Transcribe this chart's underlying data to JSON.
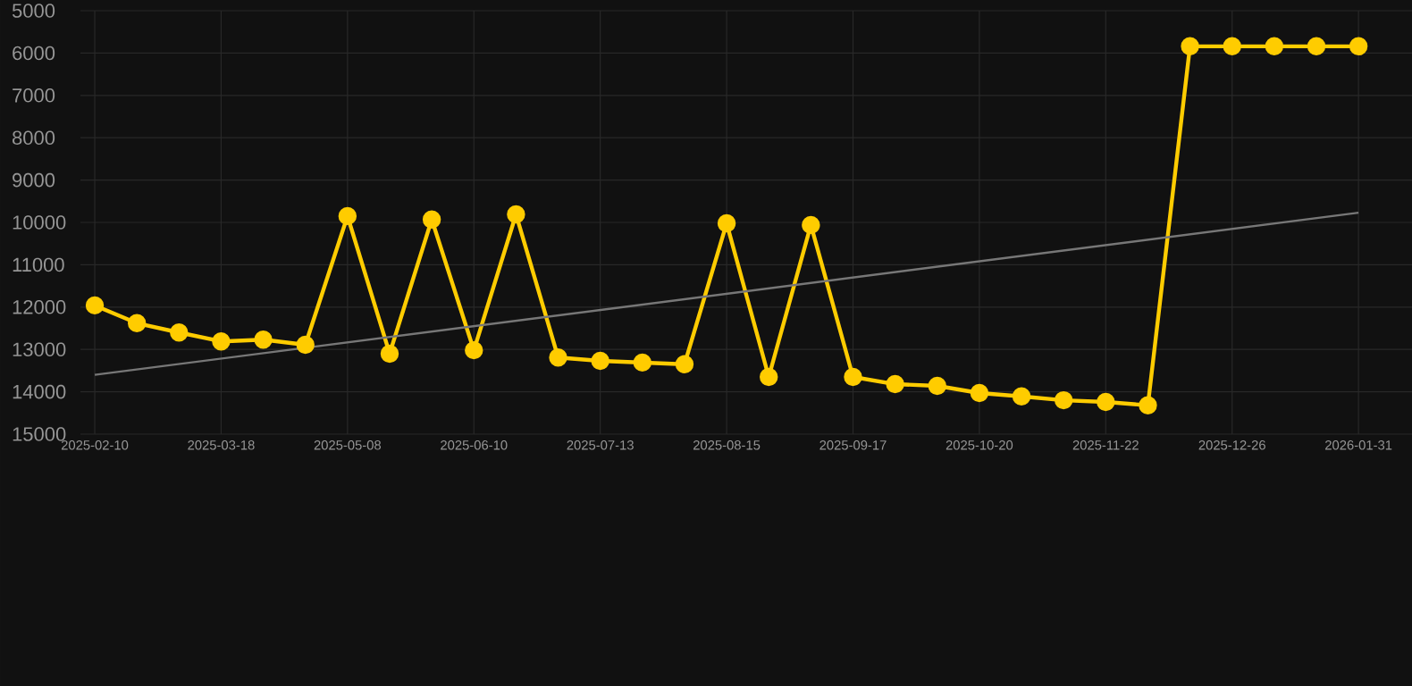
{
  "chart_data": {
    "type": "line",
    "categories": [
      "2025-02-10",
      null,
      null,
      "2025-03-18",
      null,
      null,
      "2025-05-08",
      null,
      null,
      "2025-06-10",
      null,
      null,
      "2025-07-13",
      null,
      null,
      "2025-08-15",
      null,
      null,
      "2025-09-17",
      null,
      null,
      "2025-10-20",
      null,
      null,
      "2025-11-22",
      null,
      null,
      "2025-12-26",
      null,
      null,
      "2026-01-31"
    ],
    "series": [
      {
        "color": "#ffcc00",
        "marker": "circle",
        "values": [
          11960,
          12380,
          12600,
          12810,
          12770,
          12890,
          9850,
          13100,
          9930,
          13020,
          9810,
          13190,
          13270,
          13310,
          13350,
          10020,
          13650,
          10060,
          13650,
          13820,
          13860,
          14030,
          14110,
          14200,
          14240,
          14320,
          5840,
          5840,
          5840,
          5840,
          5840
        ]
      },
      {
        "color": "#777777",
        "marker": "none",
        "values": [
          13600,
          null,
          null,
          null,
          null,
          null,
          null,
          null,
          null,
          null,
          null,
          null,
          null,
          null,
          null,
          null,
          null,
          null,
          null,
          null,
          null,
          null,
          null,
          null,
          null,
          null,
          null,
          null,
          null,
          null,
          9770
        ]
      }
    ],
    "ylim": [
      15000,
      5000
    ],
    "yticks": [
      5000,
      6000,
      7000,
      8000,
      9000,
      10000,
      11000,
      12000,
      13000,
      14000,
      15000
    ],
    "grid": true
  }
}
